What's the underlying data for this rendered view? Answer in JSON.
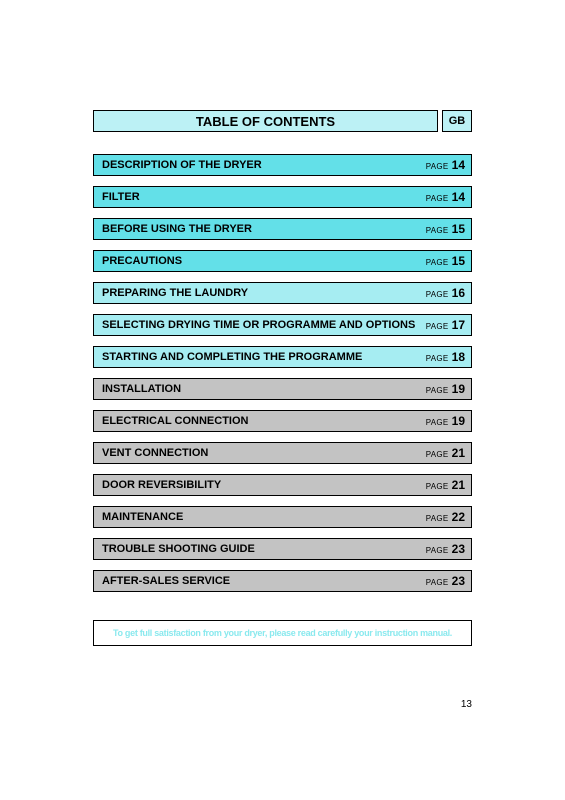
{
  "header": {
    "title": "TABLE OF CONTENTS",
    "lang": "GB",
    "title_bg": "#bcf1f5",
    "lang_bg": "#bcf1f5"
  },
  "page_label_text": "PAGE",
  "rows": [
    {
      "label": "DESCRIPTION OF THE DRYER",
      "page": "14",
      "bg": "#63e0e8"
    },
    {
      "label": "FILTER",
      "page": "14",
      "bg": "#63e0e8"
    },
    {
      "label": "BEFORE USING THE DRYER",
      "page": "15",
      "bg": "#63e0e8"
    },
    {
      "label": "PRECAUTIONS",
      "page": "15",
      "bg": "#63e0e8"
    },
    {
      "label": "PREPARING THE LAUNDRY",
      "page": "16",
      "bg": "#a6edf2"
    },
    {
      "label": "SELECTING DRYING TIME OR PROGRAMME AND OPTIONS",
      "page": "17",
      "bg": "#a6edf2"
    },
    {
      "label": "STARTING AND COMPLETING THE PROGRAMME",
      "page": "18",
      "bg": "#a6edf2"
    },
    {
      "label": "INSTALLATION",
      "page": "19",
      "bg": "#c3c3c3"
    },
    {
      "label": "ELECTRICAL CONNECTION",
      "page": "19",
      "bg": "#c3c3c3"
    },
    {
      "label": "VENT CONNECTION",
      "page": "21",
      "bg": "#c3c3c3"
    },
    {
      "label": "DOOR REVERSIBILITY",
      "page": "21",
      "bg": "#c3c3c3"
    },
    {
      "label": "MAINTENANCE",
      "page": "22",
      "bg": "#c3c3c3"
    },
    {
      "label": "TROUBLE SHOOTING GUIDE",
      "page": "23",
      "bg": "#c3c3c3"
    },
    {
      "label": "AFTER-SALES SERVICE",
      "page": "23",
      "bg": "#c3c3c3"
    }
  ],
  "footer": {
    "text": "To get full satisfaction from your dryer, please read carefully your instruction manual.",
    "text_color": "#8ae9ee",
    "bg": "#ffffff"
  },
  "page_number": "13"
}
